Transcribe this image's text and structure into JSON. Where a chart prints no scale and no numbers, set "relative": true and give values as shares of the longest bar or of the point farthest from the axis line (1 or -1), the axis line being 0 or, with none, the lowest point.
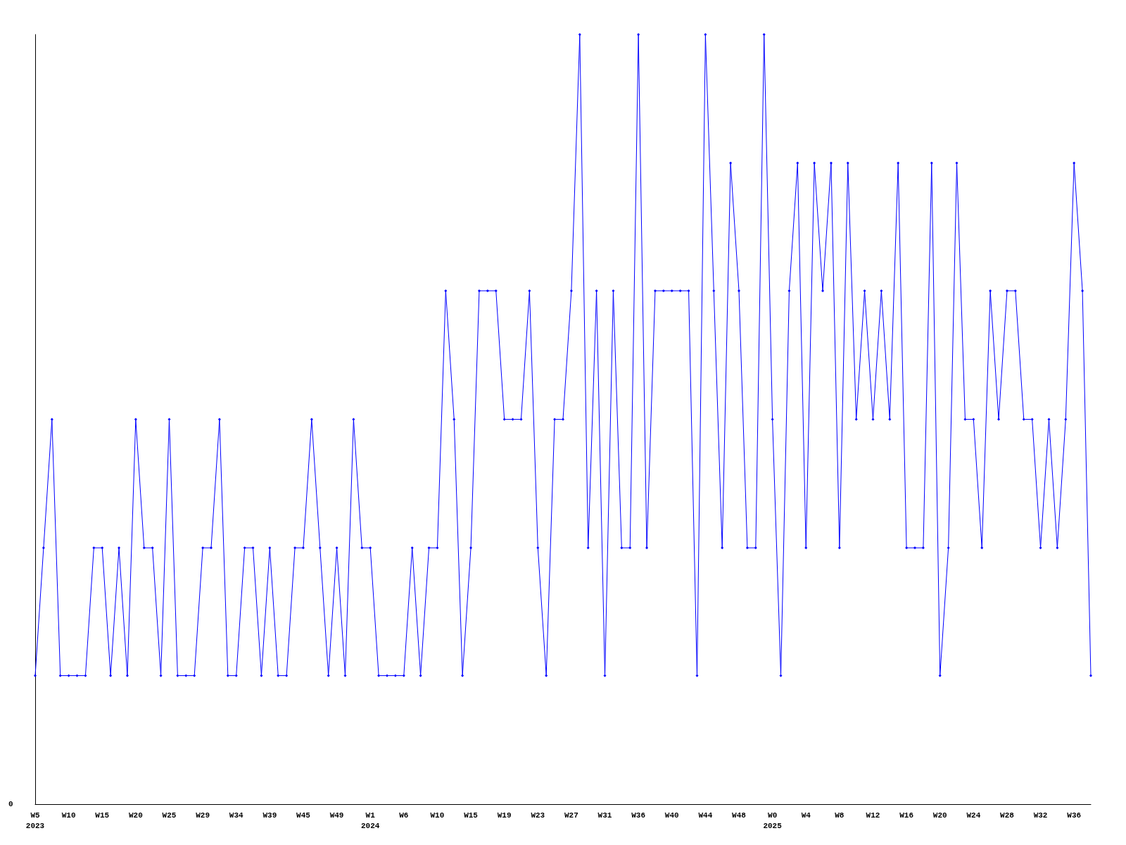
{
  "chart_data": {
    "type": "line",
    "relative": true,
    "color": "#0000ff",
    "marker": "diamond",
    "line_style": "solid",
    "grid": false,
    "categories": [
      "W5\n2023",
      null,
      null,
      null,
      "W10",
      null,
      null,
      null,
      "W15",
      null,
      null,
      null,
      "W20",
      null,
      null,
      null,
      "W25",
      null,
      null,
      null,
      "W29",
      null,
      null,
      null,
      "W34",
      null,
      null,
      null,
      "W39",
      null,
      null,
      null,
      "W45",
      null,
      null,
      null,
      "W49",
      null,
      null,
      null,
      "W1\n2024",
      null,
      null,
      null,
      "W6",
      null,
      null,
      null,
      "W10",
      null,
      null,
      null,
      "W15",
      null,
      null,
      null,
      "W19",
      null,
      null,
      null,
      "W23",
      null,
      null,
      null,
      "W27",
      null,
      null,
      null,
      "W31",
      null,
      null,
      null,
      "W36",
      null,
      null,
      null,
      "W40",
      null,
      null,
      null,
      "W44",
      null,
      null,
      null,
      "W48",
      null,
      null,
      null,
      "W0\n2025",
      null,
      null,
      null,
      "W4",
      null,
      null,
      null,
      "W8",
      null,
      null,
      null,
      "W12",
      null,
      null,
      null,
      "W16",
      null,
      null,
      null,
      "W20",
      null,
      null,
      null,
      "W24",
      null,
      null,
      null,
      "W28",
      null,
      null,
      null,
      "W32",
      null,
      null,
      null,
      "W36",
      null,
      null
    ],
    "values": [
      0.167,
      0.333,
      0.5,
      0.167,
      0.167,
      0.167,
      0.167,
      0.333,
      0.333,
      0.167,
      0.333,
      0.167,
      0.5,
      0.333,
      0.333,
      0.167,
      0.5,
      0.167,
      0.167,
      0.167,
      0.333,
      0.333,
      0.5,
      0.167,
      0.167,
      0.333,
      0.333,
      0.167,
      0.333,
      0.167,
      0.167,
      0.333,
      0.333,
      0.5,
      0.333,
      0.167,
      0.333,
      0.167,
      0.5,
      0.333,
      0.333,
      0.167,
      0.167,
      0.167,
      0.167,
      0.333,
      0.167,
      0.333,
      0.333,
      0.667,
      0.5,
      0.167,
      0.333,
      0.667,
      0.667,
      0.667,
      0.5,
      0.5,
      0.5,
      0.667,
      0.333,
      0.167,
      0.5,
      0.5,
      0.667,
      1,
      0.333,
      0.667,
      0.167,
      0.667,
      0.333,
      0.333,
      1,
      0.333,
      0.667,
      0.667,
      0.667,
      0.667,
      0.667,
      0.167,
      1,
      0.667,
      0.333,
      0.833,
      0.667,
      0.333,
      0.333,
      1,
      0.5,
      0.167,
      0.667,
      0.833,
      0.333,
      0.833,
      0.667,
      0.833,
      0.333,
      0.833,
      0.5,
      0.667,
      0.5,
      0.667,
      0.5,
      0.833,
      0.333,
      0.333,
      0.333,
      0.833,
      0.167,
      0.333,
      0.833,
      0.5,
      0.5,
      0.333,
      0.667,
      0.5,
      0.667,
      0.667,
      0.5,
      0.5,
      0.333,
      0.5,
      0.333,
      0.5,
      0.833,
      0.667,
      0.167
    ],
    "annotations": [
      "0"
    ]
  }
}
